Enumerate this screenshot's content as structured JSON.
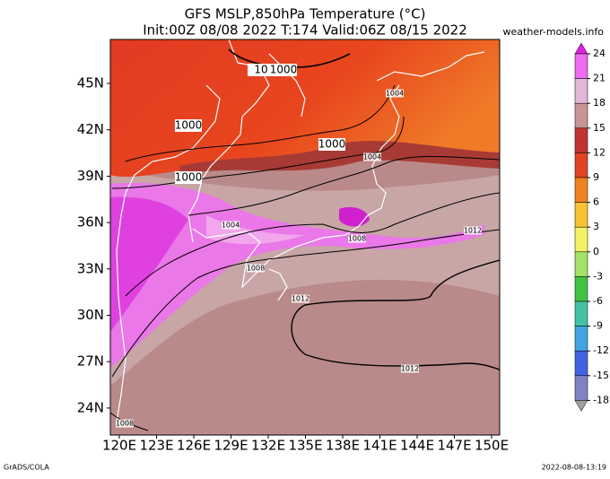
{
  "header": {
    "title": "GFS MSLP,850hPa Temperature (°C)",
    "subtitle": "Init:00Z 08/08 2022 T:174 Valid:06Z 08/15 2022",
    "source": "weather-models.info"
  },
  "map": {
    "lat_labels": [
      "45N",
      "42N",
      "39N",
      "36N",
      "33N",
      "30N",
      "27N",
      "24N"
    ],
    "lon_labels": [
      "120E",
      "123E",
      "126E",
      "129E",
      "132E",
      "135E",
      "138E",
      "141E",
      "144E",
      "147E",
      "150E"
    ],
    "isobar_labels": [
      "10",
      "1000",
      "1004",
      "1000",
      "1000",
      "1004",
      "1000",
      "1004",
      "1008",
      "1012",
      "1008",
      "1012",
      "1012",
      "1008"
    ]
  },
  "colorbar": {
    "ticks": [
      24,
      21,
      18,
      15,
      12,
      9,
      6,
      3,
      0,
      -3,
      -6,
      -9,
      -12,
      -15,
      -18
    ],
    "colors": [
      "#ee6aee",
      "#e2b6d6",
      "#c99496",
      "#c23232",
      "#e04422",
      "#f08222",
      "#f8c232",
      "#f2f266",
      "#a2e266",
      "#42c242",
      "#42c2a2",
      "#42a2e2",
      "#4262e2",
      "#8282c2"
    ]
  },
  "footer": {
    "left": "GrADS/COLA",
    "right": "2022-08-08-13:19"
  }
}
